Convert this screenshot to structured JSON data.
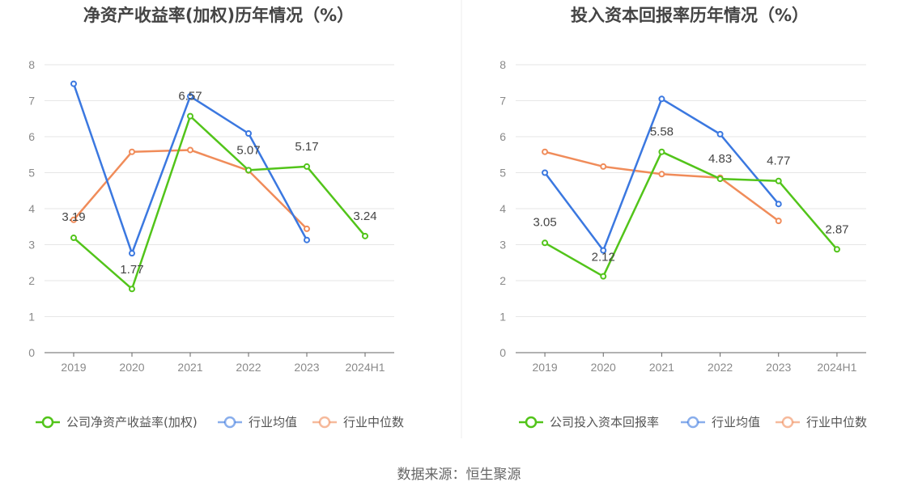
{
  "source_label": "数据来源：恒生聚源",
  "chart_data": [
    {
      "type": "line",
      "title": "净资产收益率(加权)历年情况（%）",
      "categories": [
        "2019",
        "2020",
        "2021",
        "2022",
        "2023",
        "2024H1"
      ],
      "ylim": [
        0,
        8
      ],
      "yticks": [
        0,
        1,
        2,
        3,
        4,
        5,
        6,
        7,
        8
      ],
      "grid": true,
      "legend_position": "bottom",
      "series": [
        {
          "name": "公司净资产收益率(加权)",
          "color": "#52c41a",
          "values": [
            3.19,
            1.77,
            6.57,
            5.07,
            5.17,
            3.24
          ],
          "labels": [
            "3.19",
            "1.77",
            "6.57",
            "5.07",
            "5.17",
            "3.24"
          ]
        },
        {
          "name": "行业均值",
          "color": "#3b78e0",
          "values": [
            7.47,
            2.76,
            7.12,
            6.09,
            3.13,
            null
          ]
        },
        {
          "name": "行业中位数",
          "color": "#f08c5a",
          "values": [
            3.69,
            5.58,
            5.63,
            5.06,
            3.44,
            null
          ]
        }
      ]
    },
    {
      "type": "line",
      "title": "投入资本回报率历年情况（%）",
      "categories": [
        "2019",
        "2020",
        "2021",
        "2022",
        "2023",
        "2024H1"
      ],
      "ylim": [
        0,
        8
      ],
      "yticks": [
        0,
        1,
        2,
        3,
        4,
        5,
        6,
        7,
        8
      ],
      "grid": true,
      "legend_position": "bottom",
      "series": [
        {
          "name": "公司投入资本回报率",
          "color": "#52c41a",
          "values": [
            3.05,
            2.12,
            5.58,
            4.83,
            4.77,
            2.87
          ],
          "labels": [
            "3.05",
            "2.12",
            "5.58",
            "4.83",
            "4.77",
            "2.87"
          ]
        },
        {
          "name": "行业均值",
          "color": "#3b78e0",
          "values": [
            5.0,
            2.84,
            7.05,
            6.07,
            4.13,
            null
          ]
        },
        {
          "name": "行业中位数",
          "color": "#f08c5a",
          "values": [
            5.58,
            5.17,
            4.96,
            4.86,
            3.66,
            null
          ]
        }
      ]
    }
  ]
}
